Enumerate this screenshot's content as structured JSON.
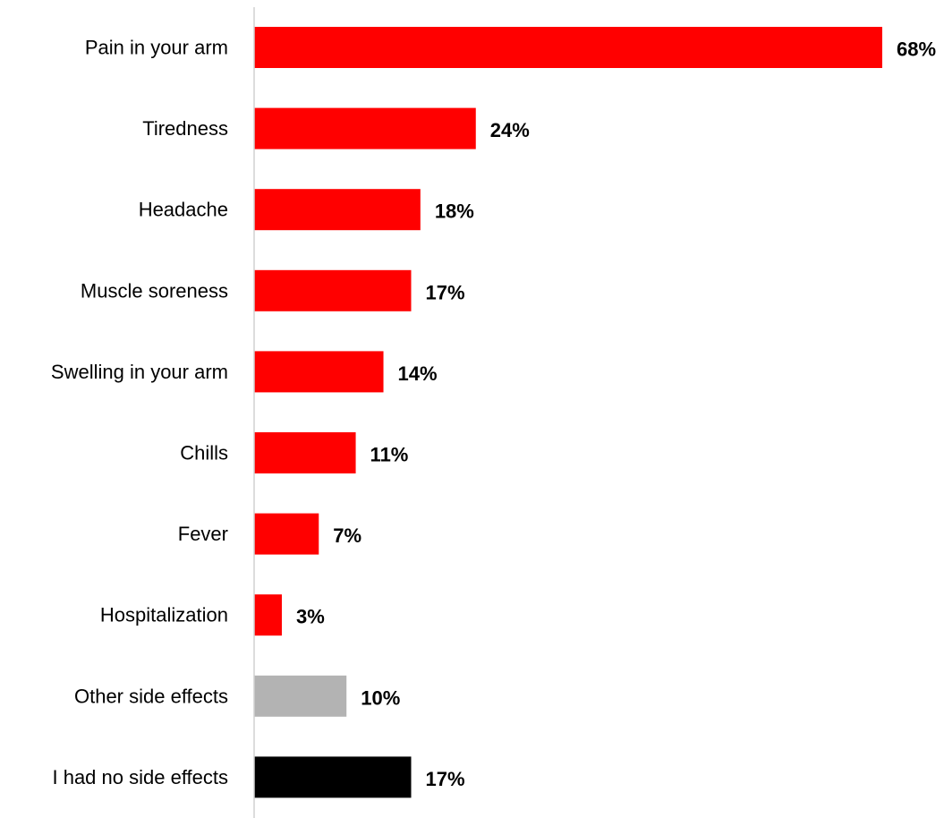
{
  "chart_data": {
    "type": "bar",
    "orientation": "horizontal",
    "title": "",
    "xlabel": "",
    "ylabel": "",
    "xlim": [
      0,
      68
    ],
    "grid": false,
    "legend": "none",
    "categories": [
      "Pain in your arm",
      "Tiredness",
      "Headache",
      "Muscle soreness",
      "Swelling in your arm",
      "Chills",
      "Fever",
      "Hospitalization",
      "Other side effects",
      "I had no side effects"
    ],
    "values": [
      68,
      24,
      18,
      17,
      14,
      11,
      7,
      3,
      10,
      17
    ],
    "value_labels": [
      "68%",
      "24%",
      "18%",
      "17%",
      "14%",
      "11%",
      "7%",
      "3%",
      "10%",
      "17%"
    ],
    "bar_colors": [
      "#ff0000",
      "#ff0000",
      "#ff0000",
      "#ff0000",
      "#ff0000",
      "#ff0000",
      "#ff0000",
      "#ff0000",
      "#b3b3b3",
      "#000000"
    ],
    "axis_color": "#d0d0d0"
  }
}
